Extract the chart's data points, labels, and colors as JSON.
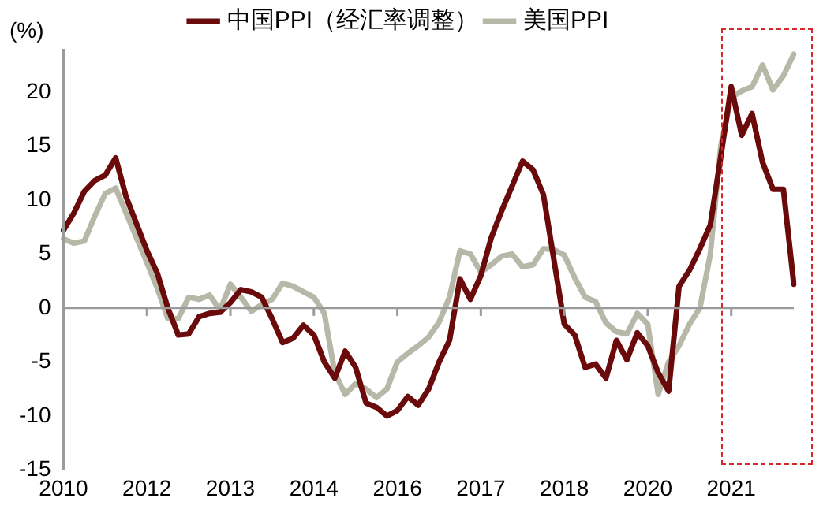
{
  "chart_data": {
    "type": "line",
    "ylabel": "(%)",
    "categories": [
      "2010",
      null,
      null,
      null,
      null,
      null,
      null,
      null,
      "2012",
      null,
      null,
      null,
      null,
      null,
      null,
      null,
      "2013",
      null,
      null,
      null,
      null,
      null,
      null,
      null,
      "2014",
      null,
      null,
      null,
      null,
      null,
      null,
      null,
      "2016",
      null,
      null,
      null,
      null,
      null,
      null,
      null,
      "2017",
      null,
      null,
      null,
      null,
      null,
      null,
      null,
      "2018",
      null,
      null,
      null,
      null,
      null,
      null,
      null,
      "2020",
      null,
      null,
      null,
      null,
      null,
      null,
      null,
      "2021",
      null,
      null,
      null,
      null,
      null,
      null
    ],
    "series": [
      {
        "name": "中国PPI（经汇率调整）",
        "color": "#6b0a0a",
        "values": [
          7.2,
          8.8,
          10.8,
          11.8,
          12.3,
          13.9,
          10.3,
          7.8,
          5.3,
          3.2,
          0,
          -2.5,
          -2.4,
          -0.8,
          -0.5,
          -0.4,
          0.5,
          1.7,
          1.5,
          1,
          -1,
          -3.2,
          -2.8,
          -1.6,
          -2.5,
          -5,
          -6.5,
          -4,
          -5.5,
          -8.8,
          -9.2,
          -10,
          -9.5,
          -8.2,
          -9,
          -7.5,
          -5,
          -3,
          2.7,
          0.8,
          3,
          6.5,
          9,
          11.3,
          13.6,
          12.8,
          10.5,
          4.5,
          -1.5,
          -2.5,
          -5.5,
          -5.2,
          -6.5,
          -3,
          -4.8,
          -2.3,
          -3.5,
          -6,
          -7.7,
          2,
          3.5,
          5.5,
          7.7,
          14,
          20.5,
          16,
          18,
          13.5,
          11,
          11,
          2.2
        ]
      },
      {
        "name": "美国PPI",
        "color": "#b8b8a8",
        "values": [
          6.4,
          6,
          6.2,
          8.5,
          10.6,
          11.1,
          8.8,
          6.5,
          4.2,
          1.8,
          -1,
          -1,
          1,
          0.8,
          1.2,
          -0.2,
          2.2,
          1,
          -0.3,
          0.3,
          0.8,
          2.3,
          2,
          1.5,
          1,
          -0.5,
          -6,
          -8,
          -7,
          -7.5,
          -8.3,
          -7.5,
          -5,
          -4.2,
          -3.5,
          -2.7,
          -1.3,
          1,
          5.3,
          5,
          3.3,
          4,
          4.8,
          5,
          3.8,
          4,
          5.5,
          5.4,
          4.9,
          2.8,
          1,
          0.6,
          -1.4,
          -2.2,
          -2.4,
          -0.5,
          -1.5,
          -8,
          -5,
          -3.5,
          -1.5,
          0,
          5,
          15,
          19.5,
          20.1,
          20.5,
          22.5,
          20.2,
          21.5,
          23.5
        ]
      }
    ],
    "ylim": [
      -15,
      24
    ],
    "yticks": [
      -15,
      -10,
      -5,
      0,
      5,
      10,
      15,
      20
    ],
    "legend": "top",
    "marker": "none",
    "line_style": "solid"
  }
}
